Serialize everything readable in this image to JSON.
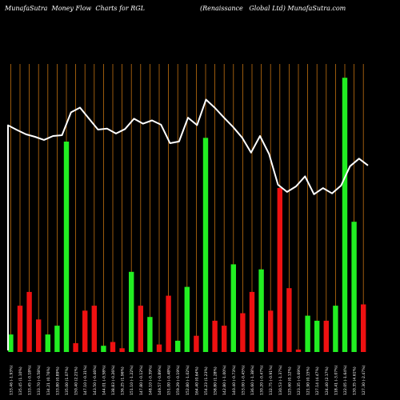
{
  "header": {
    "left": "MunafaSutra  Money Flow  Charts for RGL",
    "right": "(Renaissance   Global Ltd) MunafaSutra.com"
  },
  "colors": {
    "background": "#000000",
    "grid": "#c07010",
    "up": "#22ee22",
    "down": "#ee1111",
    "line": "#ffffff",
    "text": "#ffffff"
  },
  "chart_data": {
    "type": "bar",
    "title": "",
    "categories": [
      "133.46 (-1.93%)",
      "135.45 (1.10%)",
      "133.45 (-0.18%)",
      "133.70 (-0.58%)",
      "134.21 (0.76%)",
      "133.80 (0.89%)",
      "135.00 (1.07%)",
      "150.40 (2.21%)",
      "147.10 (-0.31%)",
      "143.50 (-0.46%)",
      "144.01 (-0.58%)",
      "138.83 (-0.26%)",
      "136.25 (1.96%)",
      "151.10 (-1.22%)",
      "147.80 (-0.12%)",
      "148.10 (-0.39%)",
      "149.57 (-0.89%)",
      "151.00 (-0.48%)",
      "159.29 (-0.19%)",
      "152.80 (-1.02%)",
      "164.40 (0.64%)",
      "154.23 (1.23%)",
      "158.80 (1.28%)",
      "142.80 (-1.00%)",
      "140.40 (-0.73%)",
      "153.00 (-0.45%)",
      "136.60 (-1.38%)",
      "130.20 (-0.47%)",
      "132.75 (-0.91%)",
      "130.53 (-1.37%)",
      "125.60 (0.12%)",
      "123.35 (-0.69%)",
      "121.90 (0.15%)",
      "127.14 (4.47%)",
      "124.40 (2.17%)",
      "118.41 (-3.07%)",
      "122.05 (-1.64%)",
      "130.35 (4.61%)",
      "127.30 (-2.47%)"
    ],
    "volume": [
      14,
      37,
      48,
      26,
      14,
      21,
      168,
      7,
      33,
      37,
      5,
      8,
      3,
      64,
      37,
      28,
      6,
      45,
      9,
      52,
      13,
      171,
      25,
      21,
      70,
      31,
      48,
      66,
      33,
      131,
      51,
      2,
      29,
      25,
      25,
      37,
      219,
      104,
      38
    ],
    "direction": [
      "up",
      "down",
      "down",
      "down",
      "up",
      "up",
      "up",
      "down",
      "down",
      "down",
      "up",
      "down",
      "down",
      "up",
      "down",
      "up",
      "down",
      "down",
      "up",
      "up",
      "down",
      "up",
      "down",
      "down",
      "up",
      "down",
      "down",
      "up",
      "down",
      "down",
      "down",
      "down",
      "up",
      "up",
      "down",
      "up",
      "up",
      "up",
      "down"
    ],
    "price": [
      133.46,
      135.45,
      133.45,
      133.7,
      134.21,
      133.8,
      135.0,
      150.4,
      147.1,
      143.5,
      144.01,
      138.83,
      136.25,
      151.1,
      147.8,
      148.1,
      149.57,
      151.0,
      159.29,
      152.8,
      164.4,
      154.23,
      158.8,
      142.8,
      140.4,
      153.0,
      136.6,
      130.2,
      132.75,
      130.53,
      125.6,
      123.35,
      121.9,
      127.14,
      124.4,
      118.41,
      122.05,
      130.35,
      127.3
    ],
    "price_line": [
      140.2,
      137.9,
      135.8,
      134.6,
      133.1,
      135.0,
      135.4,
      146.5,
      148.8,
      143.4,
      138.1,
      138.6,
      136.2,
      138.4,
      143.4,
      141.0,
      142.6,
      140.5,
      131.5,
      132.3,
      143.9,
      140.3,
      152.7,
      148.6,
      143.9,
      139.4,
      134.3,
      126.9,
      135.0,
      126.3,
      111.3,
      107.8,
      110.5,
      115.4,
      106.7,
      109.7,
      107.1,
      110.9,
      120.3,
      124.0,
      120.7
    ],
    "volume_ylim": [
      0,
      230
    ],
    "price_ylim": [
      30,
      170
    ],
    "grid": true
  }
}
